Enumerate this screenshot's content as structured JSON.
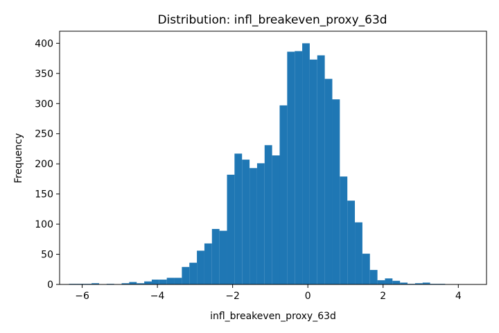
{
  "chart_data": {
    "type": "bar",
    "title": "Distribution: infl_breakeven_proxy_63d",
    "xlabel": "infl_breakeven_proxy_63d",
    "ylabel": "Frequency",
    "xlim": [
      -6.6,
      4.75
    ],
    "ylim": [
      0,
      420
    ],
    "grid": false,
    "bar_color": "#1f77b4",
    "bin_start": -6.35,
    "bin_width": 0.2,
    "counts": [
      1,
      1,
      1,
      2,
      0,
      1,
      0,
      2,
      4,
      2,
      5,
      8,
      8,
      11,
      11,
      29,
      36,
      56,
      68,
      92,
      89,
      182,
      217,
      207,
      193,
      201,
      231,
      214,
      297,
      386,
      387,
      400,
      373,
      380,
      341,
      307,
      179,
      139,
      103,
      51,
      24,
      7,
      10,
      6,
      3,
      1,
      2,
      3,
      1,
      1
    ],
    "xticks": [
      -6,
      -4,
      -2,
      0,
      2,
      4
    ],
    "xtick_labels": [
      "−6",
      "−4",
      "−2",
      "0",
      "2",
      "4"
    ],
    "yticks": [
      0,
      50,
      100,
      150,
      200,
      250,
      300,
      350,
      400
    ],
    "ytick_labels": [
      "0",
      "50",
      "100",
      "150",
      "200",
      "250",
      "300",
      "350",
      "400"
    ]
  }
}
